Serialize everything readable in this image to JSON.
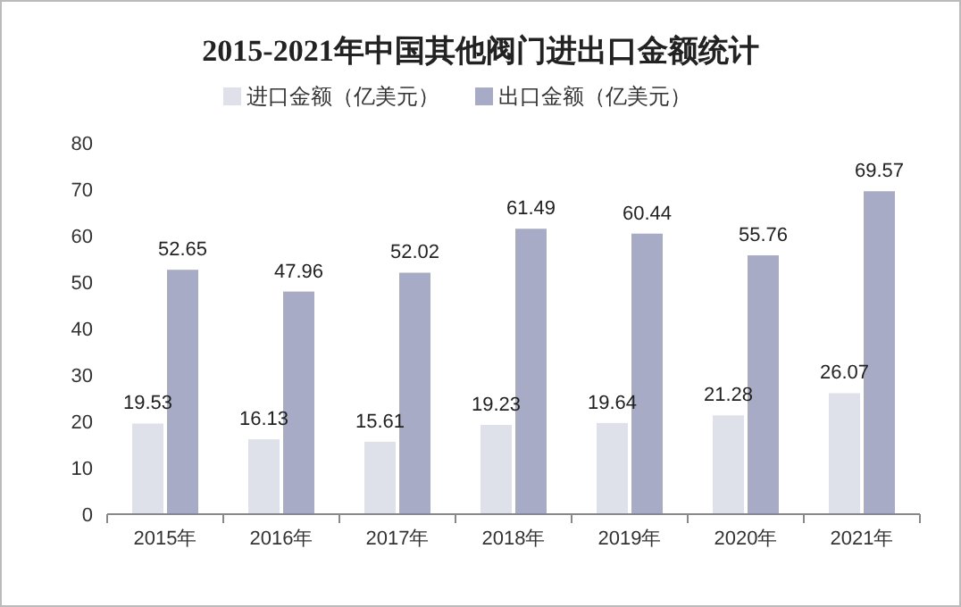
{
  "chart_data": {
    "type": "bar",
    "title": "2015-2021年中国其他阀门进出口金额统计",
    "categories": [
      "2015年",
      "2016年",
      "2017年",
      "2018年",
      "2019年",
      "2020年",
      "2021年"
    ],
    "series": [
      {
        "name": "进口金额（亿美元）",
        "color": "#dfe1ea",
        "values": [
          19.53,
          16.13,
          15.61,
          19.23,
          19.64,
          21.28,
          26.07
        ]
      },
      {
        "name": "出口金额（亿美元）",
        "color": "#a8abc6",
        "values": [
          52.65,
          47.96,
          52.02,
          61.49,
          60.44,
          55.76,
          69.57
        ]
      }
    ],
    "ylim": [
      0,
      80
    ],
    "yticks": [
      0,
      10,
      20,
      30,
      40,
      50,
      60,
      70,
      80
    ],
    "data_labels": true,
    "legend": "top",
    "grid": false
  }
}
